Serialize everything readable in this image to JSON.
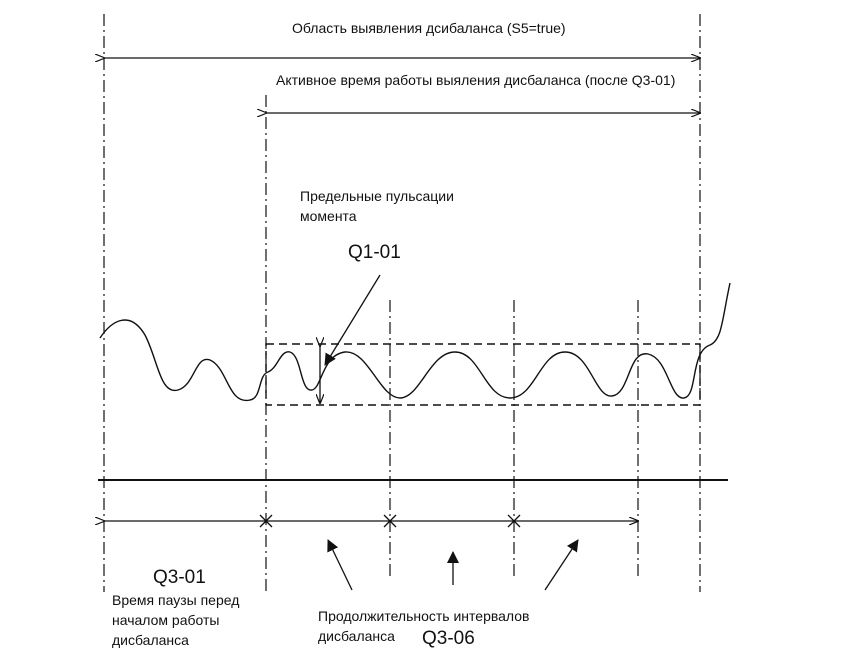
{
  "labels": {
    "detection_area": "Область выявления дсибаланса (S5=true)",
    "active_time": "Активное время работы выяления дисбаланса (после Q3-01)",
    "pulsation_limit": "Предельные пульсации момента",
    "q1_01": "Q1-01",
    "q3_01": "Q3-01",
    "pause_time": "Время паузы перед началом работы дисбаланса",
    "interval_duration": "Продолжительность интервалов дисбаланса",
    "q3_06": "Q3-06"
  }
}
